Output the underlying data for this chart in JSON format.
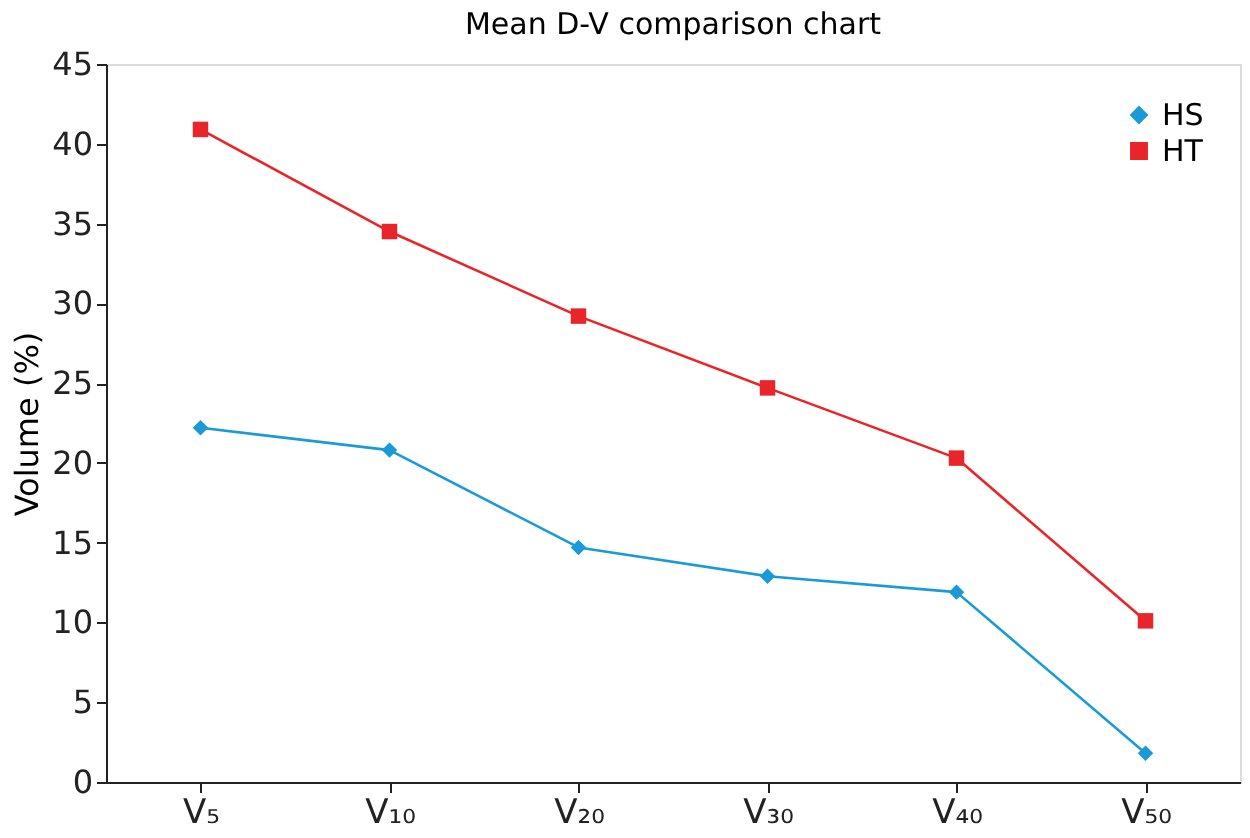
{
  "chart_data": {
    "type": "line",
    "title": "Mean D-V comparison chart",
    "ylabel": "Volume (%)",
    "categories": [
      "V₅",
      "V₁₀",
      "V₂₀",
      "V₃₀",
      "V₄₀",
      "V₅₀"
    ],
    "series": [
      {
        "name": "HS",
        "color": "#1a9ad6",
        "marker": "diamond",
        "values": [
          22.2,
          20.8,
          14.7,
          12.9,
          11.9,
          1.8
        ]
      },
      {
        "name": "HT",
        "color": "#e8262a",
        "marker": "square",
        "values": [
          40.9,
          34.5,
          29.2,
          24.7,
          20.3,
          10.1
        ]
      }
    ],
    "ylim": [
      0,
      45
    ],
    "yticks": [
      0,
      5,
      10,
      15,
      20,
      25,
      30,
      35,
      40,
      45
    ],
    "grid": false,
    "legend": "top right",
    "line_style": "solid"
  }
}
